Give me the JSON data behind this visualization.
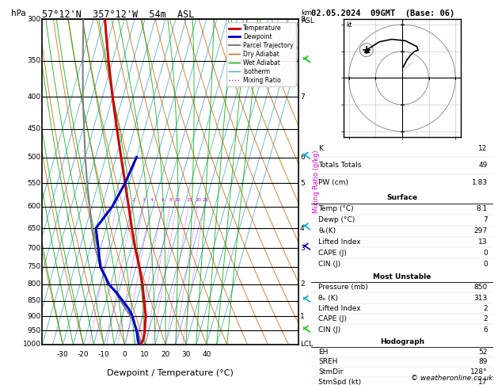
{
  "title_left": "57°12'N  357°12'W  54m  ASL",
  "title_right": "02.05.2024  09GMT  (Base: 06)",
  "xlabel": "Dewpoint / Temperature (°C)",
  "footer": "© weatheronline.co.uk",
  "pressure_levels": [
    300,
    350,
    400,
    450,
    500,
    550,
    600,
    650,
    700,
    750,
    800,
    850,
    900,
    950,
    1000
  ],
  "temp_ticks": [
    -30,
    -20,
    -10,
    0,
    10,
    20,
    30,
    40
  ],
  "km_labels": {
    "300": "8",
    "400": "7",
    "500": "6",
    "550": "5",
    "650": "4",
    "700": "3",
    "800": "2",
    "900": "1"
  },
  "temperature_profile_p": [
    1000,
    975,
    950,
    925,
    900,
    875,
    850,
    825,
    800,
    775,
    750,
    700,
    650,
    600,
    550,
    500,
    450,
    400,
    350,
    300
  ],
  "temperature_profile_t": [
    8.1,
    8.5,
    8.0,
    7.2,
    6.5,
    5.0,
    3.5,
    2.0,
    0.5,
    -1.5,
    -3.5,
    -8.0,
    -12.5,
    -17.0,
    -22.0,
    -27.5,
    -33.5,
    -40.0,
    -47.0,
    -54.5
  ],
  "dewpoint_profile_p": [
    1000,
    975,
    950,
    925,
    900,
    875,
    850,
    825,
    800,
    775,
    750,
    700,
    650,
    600,
    550,
    500
  ],
  "dewpoint_profile_t": [
    7.0,
    5.5,
    4.0,
    2.0,
    0.0,
    -3.0,
    -7.0,
    -11.0,
    -16.0,
    -19.0,
    -22.5,
    -26.0,
    -30.0,
    -25.0,
    -22.0,
    -20.0
  ],
  "parcel_profile_p": [
    1000,
    975,
    950,
    925,
    900,
    875,
    850,
    825,
    800,
    775,
    750,
    700,
    650,
    600,
    550,
    500,
    450,
    400,
    350,
    300
  ],
  "parcel_profile_t": [
    8.1,
    6.5,
    4.5,
    2.0,
    -1.0,
    -4.5,
    -8.0,
    -11.5,
    -15.5,
    -19.0,
    -22.5,
    -27.5,
    -32.0,
    -36.0,
    -40.5,
    -45.0,
    -49.5,
    -54.5,
    -59.5,
    -65.0
  ],
  "mixing_ratio_values": [
    1,
    2,
    3,
    4,
    6,
    8,
    10,
    15,
    20,
    25
  ],
  "bg_color": "#ffffff",
  "temp_color": "#cc0000",
  "dewp_color": "#0000cc",
  "parcel_color": "#808080",
  "dry_adiabat_color": "#cc6600",
  "wet_adiabat_color": "#00aa00",
  "isotherm_color": "#44aacc",
  "mixing_ratio_color": "#cc00cc",
  "k_index": 12,
  "totals_totals": 49,
  "pw_cm": 1.83,
  "sfc_temp": 8.1,
  "sfc_dewp": 7,
  "sfc_theta_e": 297,
  "sfc_lifted_index": 13,
  "sfc_cape": 0,
  "sfc_cin": 0,
  "mu_pressure": 850,
  "mu_theta_e": 313,
  "mu_lifted_index": 2,
  "mu_cape": 2,
  "mu_cin": 6,
  "eh": 52,
  "sreh": 89,
  "stm_dir": 128,
  "stm_spd": 17,
  "pmin": 300,
  "pmax": 1000,
  "tmin": -40,
  "tmax": 40,
  "skew": 45
}
